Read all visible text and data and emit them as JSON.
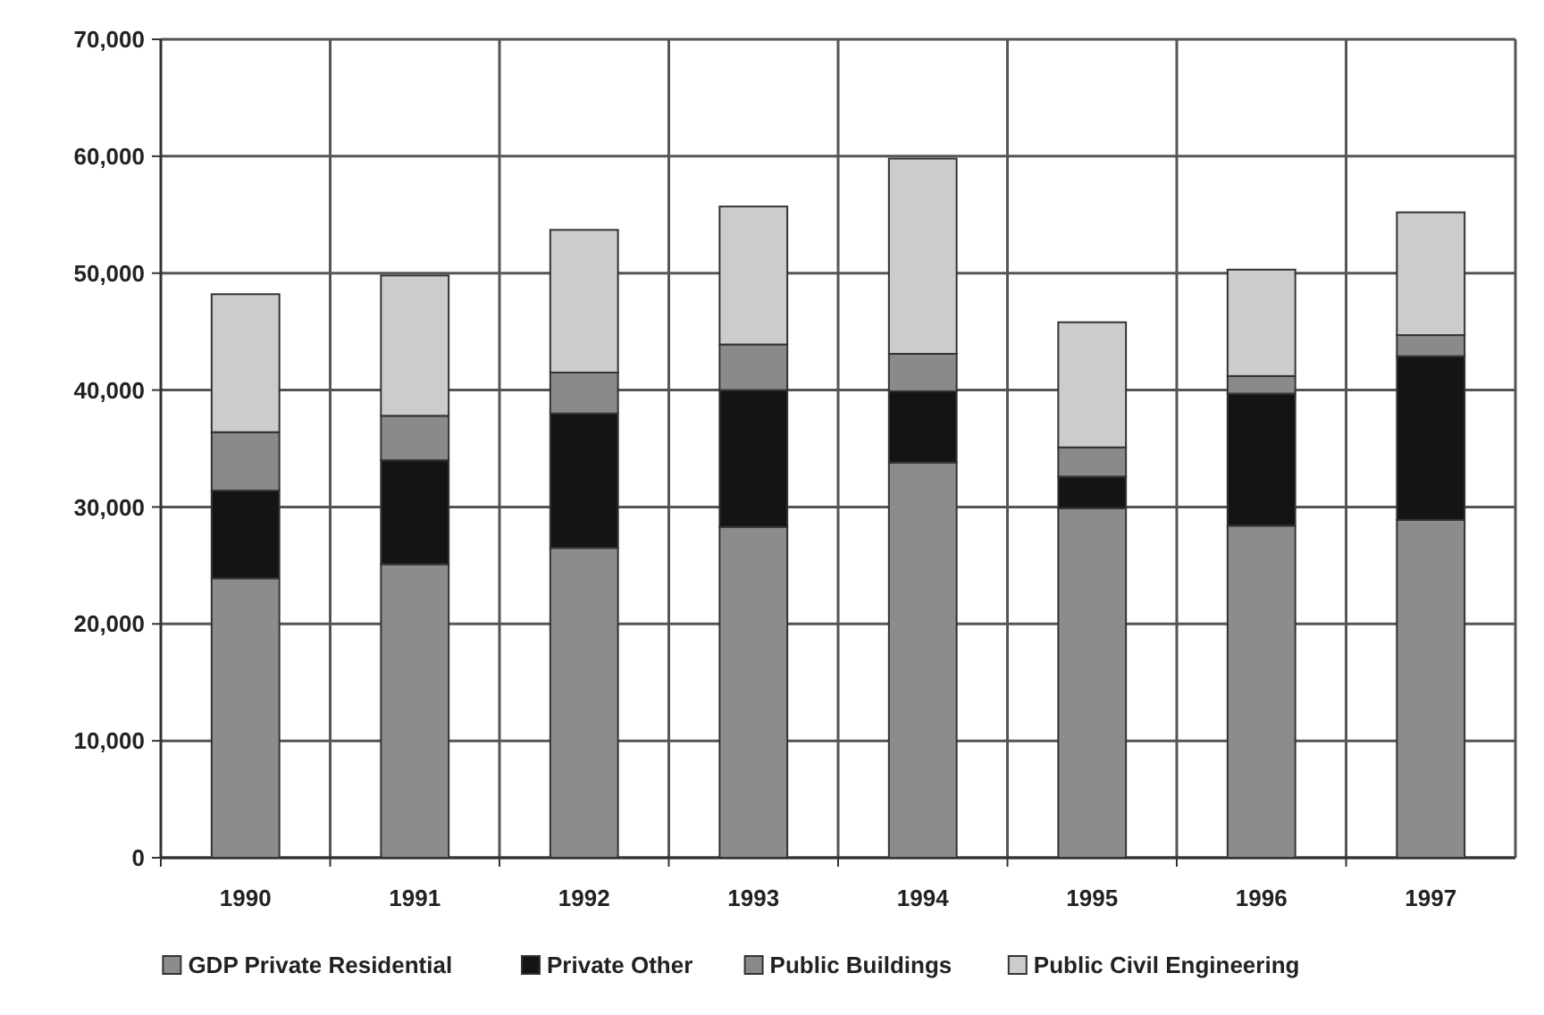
{
  "chart_data": {
    "type": "bar",
    "stacked": true,
    "categories": [
      "1990",
      "1991",
      "1992",
      "1993",
      "1994",
      "1995",
      "1996",
      "1997"
    ],
    "series": [
      {
        "name": "GDP Private Residential",
        "color": "#8c8c8c",
        "values": [
          23900,
          25100,
          26500,
          28300,
          33800,
          29900,
          28400,
          28900
        ]
      },
      {
        "name": "Private Other",
        "color": "#141414",
        "values": [
          7500,
          8900,
          11500,
          11700,
          6100,
          2700,
          11300,
          14000
        ]
      },
      {
        "name": "Public Buildings",
        "color": "#8a8a8a",
        "values": [
          5000,
          3800,
          3500,
          3900,
          3200,
          2500,
          1500,
          1800
        ]
      },
      {
        "name": "Public Civil Engineering",
        "color": "#cccccc",
        "values": [
          11800,
          12000,
          12200,
          11800,
          16700,
          10700,
          9100,
          10500
        ]
      }
    ],
    "ylim": [
      0,
      70000
    ],
    "yticks": [
      {
        "value": 0,
        "label": "0"
      },
      {
        "value": 10000,
        "label": "10,000"
      },
      {
        "value": 20000,
        "label": "20,000"
      },
      {
        "value": 30000,
        "label": "30,000"
      },
      {
        "value": 40000,
        "label": "40,000"
      },
      {
        "value": 50000,
        "label": "50,000"
      },
      {
        "value": 60000,
        "label": "60,000"
      },
      {
        "value": 70000,
        "label": "70,000"
      }
    ],
    "grid": true,
    "legend": "bottom"
  }
}
